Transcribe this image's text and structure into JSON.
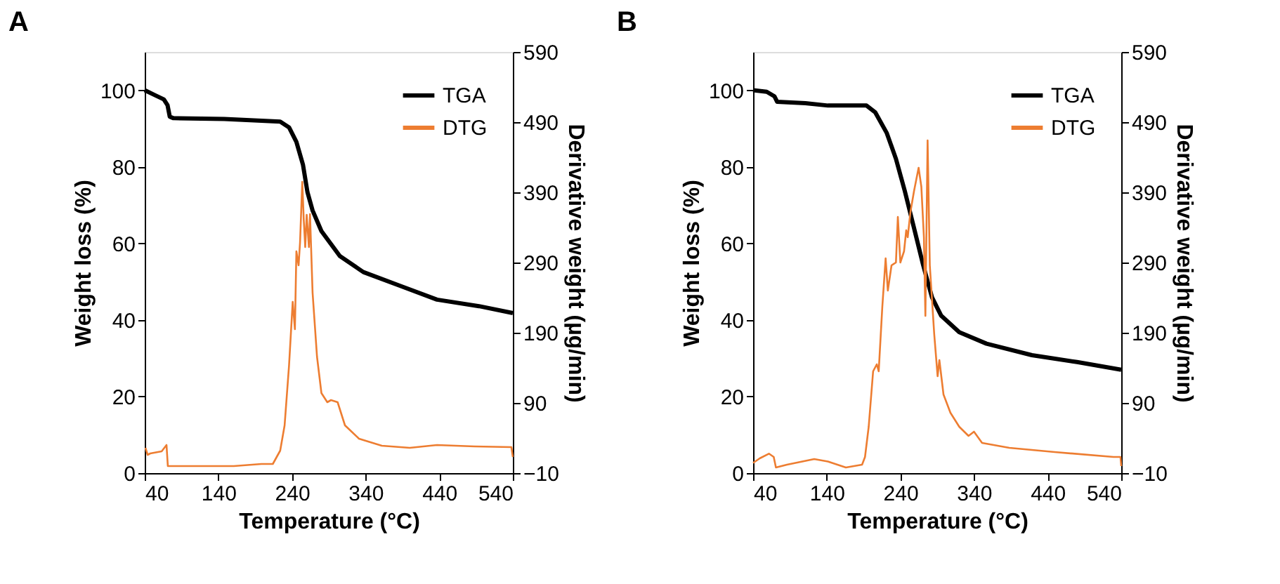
{
  "chart_data": [
    {
      "type": "line",
      "title": "A",
      "xlabel": "Temperature (°C)",
      "ylabel": "Weight loss (%)",
      "y2label": "Derivative weight (µg/min)",
      "xlim": [
        40,
        540
      ],
      "xticks": [
        40,
        140,
        240,
        340,
        440,
        540
      ],
      "ylim": [
        0,
        110
      ],
      "yticks": [
        0,
        20,
        40,
        60,
        80,
        100
      ],
      "y2lim": [
        -10,
        590
      ],
      "y2ticks": [
        -10,
        90,
        190,
        290,
        390,
        490,
        590
      ],
      "legend": "top right",
      "grid": false,
      "series": [
        {
          "name": "TGA",
          "color": "#000000",
          "x": [
            40,
            54,
            66,
            71,
            74,
            79,
            148,
            224,
            236,
            246,
            255,
            261,
            268,
            280,
            305,
            337,
            387,
            437,
            494,
            540
          ],
          "values": [
            100,
            98.7,
            97.6,
            96.1,
            93.1,
            92.7,
            92.5,
            91.8,
            90.3,
            86.5,
            80.5,
            73.4,
            68.6,
            63.2,
            56.7,
            52.5,
            48.9,
            45.3,
            43.6,
            41.8
          ]
        },
        {
          "name": "DTG",
          "color": "#ed7d31",
          "axis": "y2",
          "x": [
            41,
            44,
            47.5,
            63,
            69.6,
            71.4,
            117,
            161,
            198.5,
            214,
            224,
            230,
            236,
            241,
            244,
            246,
            249,
            251,
            254,
            256,
            258,
            260,
            263,
            264.5,
            268,
            274,
            280,
            288,
            293,
            302,
            312,
            331,
            362,
            400,
            437,
            488,
            538,
            540
          ],
          "values": [
            26,
            16,
            18,
            21,
            30,
            0,
            0,
            0,
            3,
            3,
            22,
            58,
            143,
            234,
            195,
            306,
            286,
            319,
            405,
            351,
            312,
            358,
            312,
            359,
            247,
            156,
            104,
            91,
            94,
            91,
            58,
            39,
            29,
            26,
            30,
            28,
            27,
            13
          ]
        }
      ]
    },
    {
      "type": "line",
      "title": "B",
      "xlabel": "Temperature (°C)",
      "ylabel": "Weight loss (%)",
      "y2label": "Derivative weight (µg/min)",
      "xlim": [
        40,
        540
      ],
      "xticks": [
        40,
        140,
        240,
        340,
        440,
        540
      ],
      "ylim": [
        0,
        110
      ],
      "yticks": [
        0,
        20,
        40,
        60,
        80,
        100
      ],
      "y2lim": [
        -10,
        590
      ],
      "y2ticks": [
        -10,
        90,
        190,
        290,
        390,
        490,
        590
      ],
      "legend": "top right",
      "grid": false,
      "series": [
        {
          "name": "TGA",
          "color": "#000000",
          "x": [
            40,
            58.5,
            69,
            72.6,
            111,
            141.6,
            194,
            206,
            221.6,
            234,
            246,
            258.6,
            271,
            283,
            295.5,
            320,
            357,
            418.7,
            480,
            540
          ],
          "values": [
            100,
            99.6,
            98.4,
            97,
            96.6,
            96,
            96,
            94.2,
            88.8,
            82.1,
            73.7,
            64,
            54.3,
            45.9,
            41.1,
            36.8,
            33.8,
            30.8,
            29,
            27
          ]
        },
        {
          "name": "DTG",
          "color": "#ed7d31",
          "axis": "y2",
          "x": [
            40,
            49,
            61.5,
            68,
            71,
            86,
            123,
            141.6,
            166,
            188,
            192,
            197,
            203,
            208,
            210.6,
            215.5,
            220,
            223,
            228,
            234,
            236.6,
            240,
            245,
            248,
            250,
            253.7,
            258.6,
            264.8,
            268.5,
            272,
            274,
            277,
            280,
            286,
            290.6,
            293,
            298.6,
            308,
            320,
            332.6,
            340,
            351,
            388,
            449.5,
            529.5,
            539,
            540
          ],
          "values": [
            4.5,
            11,
            17.7,
            13,
            -2,
            2,
            10,
            6.5,
            -2,
            2,
            13,
            56,
            135,
            145,
            135,
            227,
            296,
            250,
            286,
            290,
            355,
            290,
            306,
            336,
            326,
            362,
            392,
            425,
            398,
            326,
            214,
            464,
            286,
            188,
            128,
            151,
            102,
            76,
            56,
            43,
            49,
            33,
            26,
            20,
            13,
            13,
            0
          ]
        }
      ]
    }
  ]
}
